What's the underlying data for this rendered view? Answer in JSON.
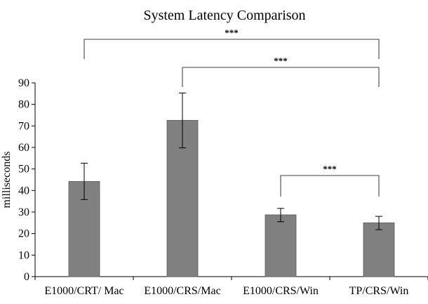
{
  "chart_data": {
    "type": "bar",
    "title": "System Latency Comparison",
    "xlabel": "",
    "ylabel": "milliseconds",
    "ylim": [
      0,
      90
    ],
    "yticks": [
      0,
      10,
      20,
      30,
      40,
      50,
      60,
      70,
      80,
      90
    ],
    "categories": [
      "E1000/CRT/ Mac",
      "E1000/CRS/Mac",
      "E1000/CRS/Win",
      "TP/CRS/Win"
    ],
    "values": [
      44.2,
      72.6,
      28.7,
      25.0
    ],
    "error_low": [
      35.8,
      59.8,
      25.5,
      21.8
    ],
    "error_high": [
      52.7,
      85.3,
      31.7,
      28.0
    ],
    "bar_color": "#808080",
    "grid": false,
    "significance": [
      {
        "from": 0,
        "to": 3,
        "label": "***"
      },
      {
        "from": 1,
        "to": 3,
        "label": "***"
      },
      {
        "from": 2,
        "to": 3,
        "label": "***"
      }
    ]
  }
}
